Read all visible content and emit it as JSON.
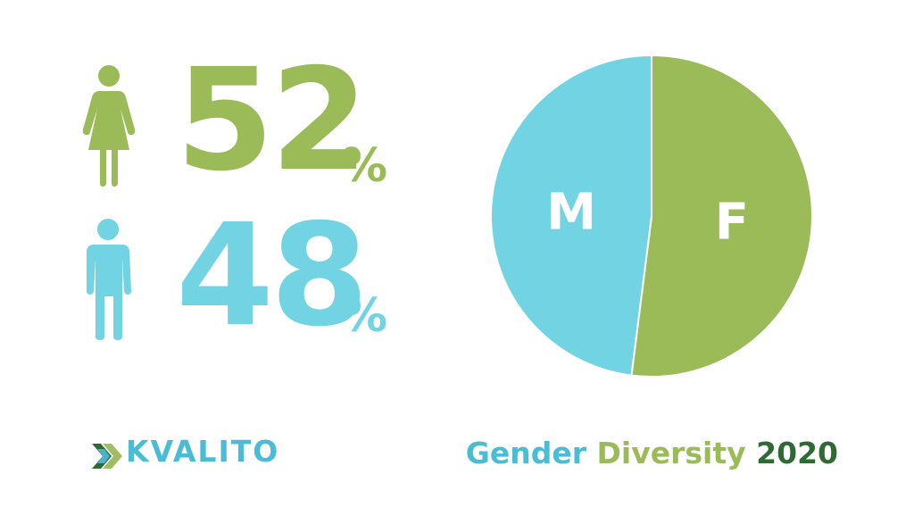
{
  "colors": {
    "female": "#9bbb59",
    "male": "#72d3e3",
    "dark_green": "#2e6b34",
    "caption_blue": "#4bbcd6"
  },
  "stats": {
    "female": {
      "icon": "female-person-icon",
      "number": "52",
      "unit": "%"
    },
    "male": {
      "icon": "male-person-icon",
      "number": "48",
      "unit": "%"
    }
  },
  "chart_data": {
    "type": "pie",
    "title": "",
    "slices": [
      {
        "label": "F",
        "value": 52,
        "color": "#9bbb59"
      },
      {
        "label": "M",
        "value": 48,
        "color": "#72d3e3"
      }
    ],
    "start": "top",
    "direction": "clockwise",
    "legend": "none"
  },
  "brand": {
    "logo_icon": "kvalito-chevron-logo-icon",
    "name": "KVALITO"
  },
  "caption": {
    "part1": "Gender",
    "part2": "Diversity",
    "part3": "2020"
  }
}
